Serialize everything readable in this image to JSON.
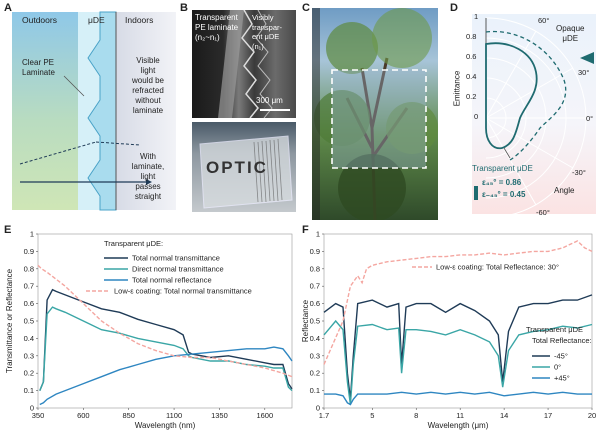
{
  "panels": {
    "A": {
      "label": "A",
      "outdoors": "Outdoors",
      "mude": "μDE",
      "indoors": "Indoors",
      "clear_pe_1": "Clear PE",
      "clear_pe_2": "Laminate",
      "visible_1": "Visible",
      "visible_2": "light",
      "visible_3": "would be",
      "visible_4": "refracted",
      "visible_5": "without",
      "visible_6": "laminate",
      "with_1": "With",
      "with_2": "laminate,",
      "with_3": "light",
      "with_4": "passes",
      "with_5": "straight"
    },
    "B": {
      "label": "B",
      "pe_1": "Transparent",
      "pe_2": "PE laminate",
      "pe_3": "(n₂~n₁)",
      "vis_1": "Visibly",
      "vis_2": "transpar-",
      "vis_3": "ent μDE",
      "vis_4": "(n₁)",
      "scale": "300 μm",
      "optic": "OPTIC"
    },
    "C": {
      "label": "C"
    },
    "D": {
      "label": "D",
      "ylabel": "Emittance",
      "yticks": [
        "1",
        "0.8",
        "0.6",
        "0.4",
        "0.2",
        "0"
      ],
      "angles": [
        "60°",
        "30°",
        "0°",
        "-30°",
        "-60°"
      ],
      "angle_label": "Angle",
      "opaque_1": "Opaque",
      "opaque_2": "μDE",
      "transparent": "Transparent μDE",
      "eps45": "ε₄₅° = 0.86",
      "epsm45": "ε₋₄₅° = 0.45"
    },
    "E": {
      "label": "E"
    },
    "F": {
      "label": "F"
    }
  },
  "chart_data": [
    {
      "id": "E",
      "type": "line",
      "title": "",
      "xlabel": "Wavelength (nm)",
      "ylabel": "Transmittance or Reflectance",
      "xlim": [
        350,
        1750
      ],
      "ylim": [
        0,
        1
      ],
      "xticks": [
        350,
        600,
        850,
        1100,
        1350,
        1600
      ],
      "yticks": [
        0,
        0.1,
        0.2,
        0.3,
        0.4,
        0.5,
        0.6,
        0.7,
        0.8,
        0.9,
        1
      ],
      "legend_title": "Transparent μDE:",
      "series": [
        {
          "name": "Total normal transmittance",
          "color": "#1f3b57",
          "dash": false,
          "x": [
            360,
            380,
            400,
            430,
            450,
            500,
            600,
            700,
            800,
            900,
            1000,
            1100,
            1150,
            1180,
            1200,
            1300,
            1400,
            1500,
            1600,
            1650,
            1700,
            1730,
            1750
          ],
          "y": [
            0.1,
            0.15,
            0.62,
            0.68,
            0.67,
            0.65,
            0.61,
            0.57,
            0.55,
            0.51,
            0.48,
            0.45,
            0.42,
            0.32,
            0.31,
            0.29,
            0.3,
            0.28,
            0.26,
            0.25,
            0.25,
            0.14,
            0.11
          ]
        },
        {
          "name": "Direct normal transmittance",
          "color": "#3aa6a6",
          "dash": false,
          "x": [
            360,
            380,
            400,
            430,
            450,
            500,
            600,
            700,
            800,
            900,
            1000,
            1100,
            1150,
            1180,
            1200,
            1300,
            1400,
            1500,
            1600,
            1650,
            1700,
            1730,
            1750
          ],
          "y": [
            0.1,
            0.15,
            0.54,
            0.58,
            0.57,
            0.55,
            0.5,
            0.45,
            0.43,
            0.4,
            0.38,
            0.36,
            0.34,
            0.3,
            0.29,
            0.27,
            0.27,
            0.25,
            0.24,
            0.23,
            0.23,
            0.12,
            0.1
          ]
        },
        {
          "name": "Total normal reflectance",
          "color": "#2e86c1",
          "dash": false,
          "x": [
            360,
            380,
            400,
            450,
            500,
            600,
            700,
            800,
            900,
            1000,
            1100,
            1200,
            1300,
            1400,
            1500,
            1600,
            1650,
            1700,
            1730,
            1750
          ],
          "y": [
            0.02,
            0.03,
            0.05,
            0.08,
            0.1,
            0.14,
            0.18,
            0.22,
            0.25,
            0.28,
            0.3,
            0.31,
            0.32,
            0.33,
            0.34,
            0.34,
            0.35,
            0.34,
            0.3,
            0.27
          ]
        },
        {
          "name": "Low-ε coating: Total normal transmittance",
          "color": "#f4a6a0",
          "dash": true,
          "x": [
            350,
            370,
            400,
            450,
            500,
            600,
            700,
            800,
            900,
            1000,
            1100,
            1200,
            1300,
            1400,
            1500,
            1600,
            1700,
            1750
          ],
          "y": [
            0.82,
            0.8,
            0.78,
            0.74,
            0.7,
            0.6,
            0.5,
            0.43,
            0.37,
            0.33,
            0.3,
            0.29,
            0.29,
            0.27,
            0.25,
            0.23,
            0.2,
            0.18
          ]
        }
      ]
    },
    {
      "id": "F",
      "type": "line",
      "title": "",
      "xlabel": "Wavelength (μm)",
      "ylabel": "Reflectance",
      "xlim": [
        1.7,
        20
      ],
      "ylim": [
        0,
        1
      ],
      "xticks": [
        "1.7",
        "5",
        "8",
        "11",
        "14",
        "17",
        "20"
      ],
      "yticks": [
        0,
        0.1,
        0.2,
        0.3,
        0.4,
        0.5,
        0.6,
        0.7,
        0.8,
        0.9,
        1
      ],
      "legend_title_1": "Transparent μDE",
      "legend_title_2": "Total Reflectance:",
      "series": [
        {
          "name": "-45°",
          "color": "#1f3b57",
          "dash": false,
          "x": [
            1.7,
            2.5,
            3.0,
            3.3,
            3.5,
            3.7,
            4.0,
            5.0,
            6.0,
            6.8,
            7.0,
            7.3,
            8.0,
            9.0,
            10.0,
            11.0,
            12.0,
            13.0,
            13.6,
            13.9,
            14.3,
            15.0,
            16.0,
            17.0,
            18.0,
            19.0,
            20.0
          ],
          "y": [
            0.55,
            0.6,
            0.58,
            0.2,
            0.05,
            0.3,
            0.6,
            0.62,
            0.58,
            0.6,
            0.25,
            0.58,
            0.6,
            0.6,
            0.55,
            0.6,
            0.56,
            0.5,
            0.42,
            0.15,
            0.44,
            0.58,
            0.6,
            0.6,
            0.62,
            0.62,
            0.65
          ]
        },
        {
          "name": "0°",
          "color": "#3aa6a6",
          "dash": false,
          "x": [
            1.7,
            2.5,
            3.0,
            3.3,
            3.5,
            3.7,
            4.0,
            5.0,
            6.0,
            6.8,
            7.0,
            7.3,
            8.0,
            9.0,
            10.0,
            11.0,
            12.0,
            13.0,
            13.6,
            13.9,
            14.3,
            15.0,
            16.0,
            17.0,
            18.0,
            19.0,
            20.0
          ],
          "y": [
            0.42,
            0.5,
            0.45,
            0.15,
            0.02,
            0.25,
            0.47,
            0.48,
            0.45,
            0.46,
            0.2,
            0.45,
            0.45,
            0.44,
            0.42,
            0.45,
            0.42,
            0.38,
            0.3,
            0.12,
            0.33,
            0.42,
            0.44,
            0.45,
            0.47,
            0.46,
            0.48
          ]
        },
        {
          "name": "+45°",
          "color": "#2e86c1",
          "dash": false,
          "x": [
            1.7,
            2.5,
            3.0,
            3.3,
            3.5,
            3.7,
            4.0,
            5.0,
            6.0,
            7.0,
            8.0,
            9.0,
            10.0,
            11.0,
            12.0,
            13.0,
            14.0,
            15.0,
            16.0,
            17.0,
            18.0,
            19.0,
            20.0
          ],
          "y": [
            0.08,
            0.08,
            0.07,
            0.03,
            0.02,
            0.05,
            0.08,
            0.08,
            0.08,
            0.09,
            0.08,
            0.09,
            0.08,
            0.09,
            0.08,
            0.09,
            0.07,
            0.08,
            0.09,
            0.08,
            0.09,
            0.08,
            0.08
          ]
        },
        {
          "name": "Low-ε coating: Total Reflectance: 30°",
          "color": "#f4a6a0",
          "dash": true,
          "x": [
            1.7,
            3.0,
            3.5,
            4.0,
            4.3,
            4.6,
            5.0,
            6.0,
            7.0,
            8.0,
            9.0,
            10.0,
            11.0,
            12.0,
            13.0,
            14.0,
            15.0,
            16.0,
            17.0,
            18.0,
            18.5,
            19.0,
            19.5,
            20.0
          ],
          "y": [
            0.25,
            0.5,
            0.7,
            0.76,
            0.72,
            0.8,
            0.82,
            0.84,
            0.85,
            0.86,
            0.87,
            0.87,
            0.88,
            0.88,
            0.89,
            0.88,
            0.89,
            0.9,
            0.9,
            0.92,
            0.94,
            0.96,
            0.92,
            0.9
          ]
        }
      ]
    }
  ]
}
